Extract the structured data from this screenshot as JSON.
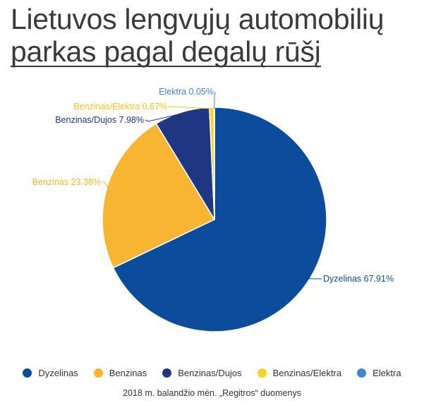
{
  "title_lines": [
    "Lietuvos lengvųjų automobilių",
    "parkas pagal degalų rūšį"
  ],
  "source": "2018 m. balandžio mėn. „Regitros“ duomenys",
  "chart_data": {
    "type": "pie",
    "title": "Lietuvos lengvųjų automobilių parkas pagal degalų rūšį",
    "unit": "%",
    "start": "12 o'clock, clockwise",
    "slices": [
      {
        "name": "Dyzelinas",
        "value": 67.91,
        "label": "Dyzelinas 67.91%",
        "color": "#0b4c9c"
      },
      {
        "name": "Benzinas",
        "value": 23.38,
        "label": "Benzinas 23.38%",
        "color": "#f8b532"
      },
      {
        "name": "Benzinas/Dujos",
        "value": 7.98,
        "label": "Benzinas/Dujos 7.98%",
        "color": "#1f3682"
      },
      {
        "name": "Benzinas/Elektra",
        "value": 0.67,
        "label": "Benzinas/Elektra 0.67%",
        "color": "#f9d421"
      },
      {
        "name": "Elektra",
        "value": 0.05,
        "label": "Elektra 0.05%",
        "color": "#3f86d0"
      }
    ],
    "legend": [
      "Dyzelinas",
      "Benzinas",
      "Benzinas/Dujos",
      "Benzinas/Elektra",
      "Elektra"
    ]
  }
}
